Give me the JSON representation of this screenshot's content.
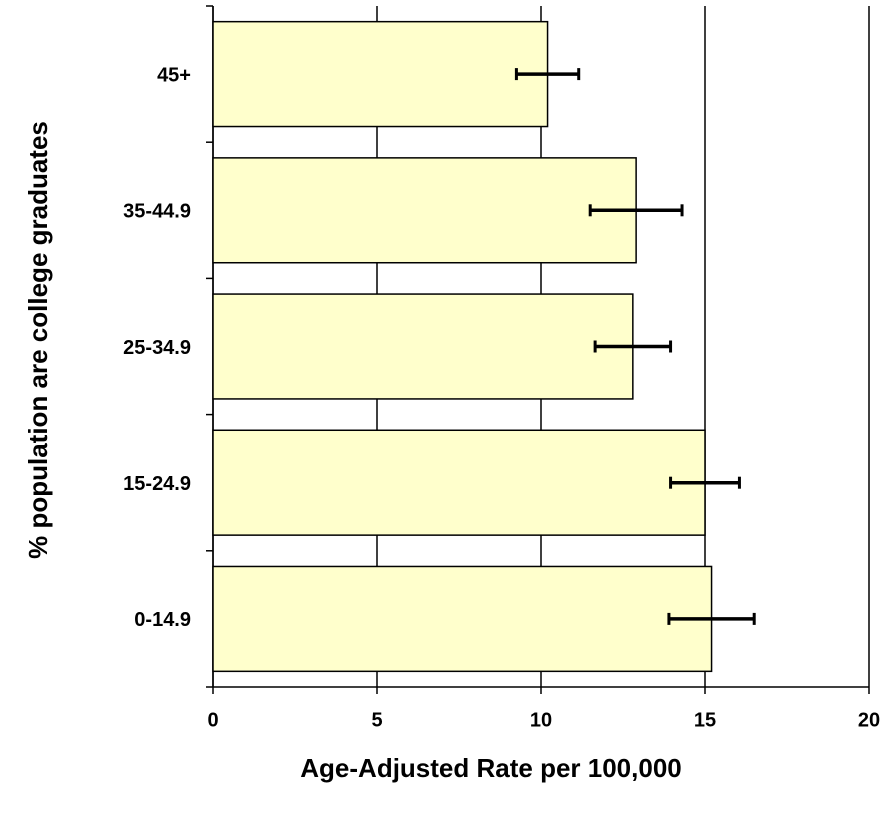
{
  "chart_data": {
    "type": "hbar",
    "x_label": "Age-Adjusted Rate per 100,000",
    "y_label": "% population are college graduates",
    "categories": [
      "45+",
      "35-44.9",
      "25-34.9",
      "15-24.9",
      "0-14.9"
    ],
    "values": [
      10.2,
      12.9,
      12.8,
      15.0,
      15.2
    ],
    "errors": [
      0.95,
      1.4,
      1.15,
      1.05,
      1.3
    ],
    "color": "#ffffcc",
    "xlim": [
      0,
      20
    ],
    "xticks": [
      0,
      5,
      10,
      15,
      20
    ],
    "grid": true
  }
}
